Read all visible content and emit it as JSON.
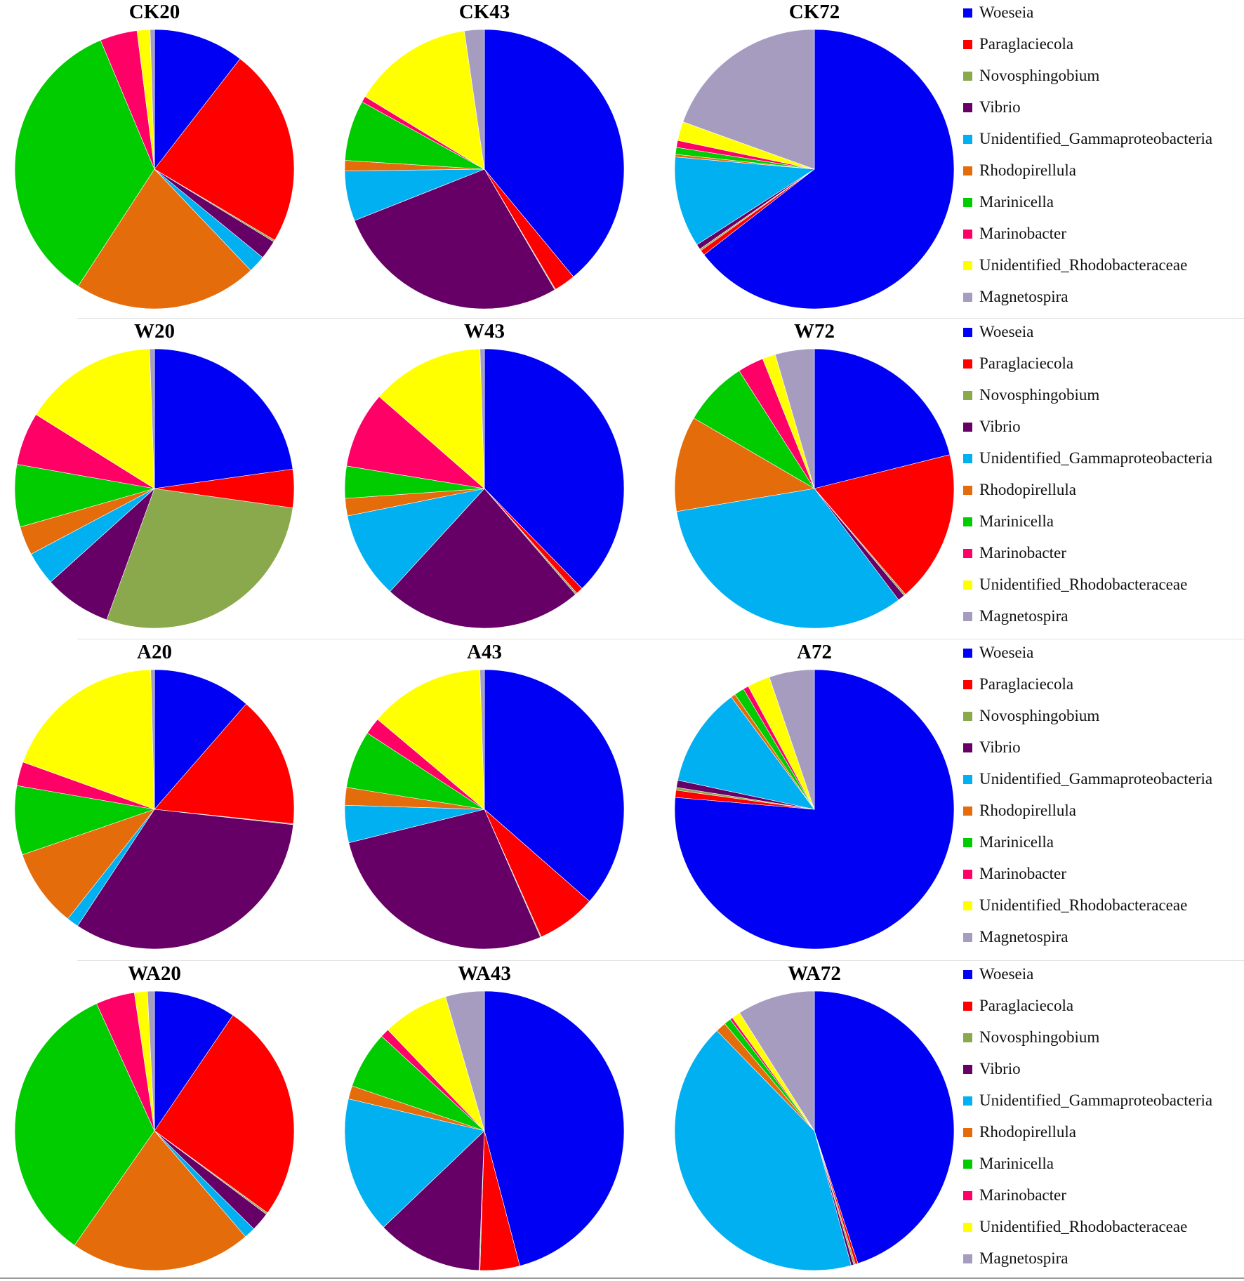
{
  "series_colors": {
    "Woeseia": "#0000f5",
    "Paraglaciecola": "#ff0000",
    "Novosphingobium": "#8aa84c",
    "Vibrio": "#660066",
    "Unidentified_Gammaproteobacteria": "#00b0f0",
    "Rhodopirellula": "#e46c0a",
    "Marinicella": "#00cc00",
    "Marinobacter": "#ff0066",
    "Unidentified_Rhodobacteraceae": "#ffff00",
    "Magnetospira": "#a69cc0"
  },
  "legend_labels": [
    "Woeseia",
    "Paraglaciecola",
    "Novosphingobium",
    "Vibrio",
    "Unidentified_Gammaproteobacteria",
    "Rhodopirellula",
    "Marinicella",
    "Marinobacter",
    "Unidentified_Rhodobacteraceae",
    "Magnetospira"
  ],
  "chart_data": [
    {
      "type": "pie",
      "title": "CK20",
      "categories": [
        "Woeseia",
        "Paraglaciecola",
        "Novosphingobium",
        "Vibrio",
        "Unidentified_Gammaproteobacteria",
        "Rhodopirellula",
        "Marinicella",
        "Marinobacter",
        "Unidentified_Rhodobacteraceae",
        "Magnetospira"
      ],
      "values": [
        10.5,
        23.0,
        0.2,
        2.2,
        2.0,
        21.3,
        34.5,
        4.3,
        1.5,
        0.5
      ]
    },
    {
      "type": "pie",
      "title": "CK43",
      "categories": [
        "Woeseia",
        "Paraglaciecola",
        "Novosphingobium",
        "Vibrio",
        "Unidentified_Gammaproteobacteria",
        "Rhodopirellula",
        "Marinicella",
        "Marinobacter",
        "Unidentified_Rhodobacteraceae",
        "Magnetospira"
      ],
      "values": [
        39.0,
        2.5,
        0.1,
        27.4,
        5.8,
        1.2,
        7.0,
        0.7,
        14.0,
        2.3
      ]
    },
    {
      "type": "pie",
      "title": "CK72",
      "categories": [
        "Woeseia",
        "Paraglaciecola",
        "Novosphingobium",
        "Vibrio",
        "Unidentified_Gammaproteobacteria",
        "Rhodopirellula",
        "Marinicella",
        "Marinobacter",
        "Unidentified_Rhodobacteraceae",
        "Magnetospira"
      ],
      "values": [
        64.5,
        0.6,
        0.2,
        0.6,
        10.5,
        0.3,
        0.8,
        0.8,
        2.2,
        19.5
      ]
    },
    {
      "type": "pie",
      "title": "W20",
      "categories": [
        "Woeseia",
        "Paraglaciecola",
        "Novosphingobium",
        "Vibrio",
        "Unidentified_Gammaproteobacteria",
        "Rhodopirellula",
        "Marinicella",
        "Marinobacter",
        "Unidentified_Rhodobacteraceae",
        "Magnetospira"
      ],
      "values": [
        20.5,
        4.0,
        25.5,
        7.0,
        3.5,
        3.0,
        6.5,
        5.5,
        14.0,
        0.5
      ]
    },
    {
      "type": "pie",
      "title": "W43",
      "categories": [
        "Woeseia",
        "Paraglaciecola",
        "Novosphingobium",
        "Vibrio",
        "Unidentified_Gammaproteobacteria",
        "Rhodopirellula",
        "Marinicella",
        "Marinobacter",
        "Unidentified_Rhodobacteraceae",
        "Magnetospira"
      ],
      "values": [
        37.5,
        0.8,
        0.2,
        23.0,
        10.0,
        2.0,
        3.7,
        8.8,
        13.0,
        0.5
      ]
    },
    {
      "type": "pie",
      "title": "W72",
      "categories": [
        "Woeseia",
        "Paraglaciecola",
        "Novosphingobium",
        "Vibrio",
        "Unidentified_Gammaproteobacteria",
        "Rhodopirellula",
        "Marinicella",
        "Marinobacter",
        "Unidentified_Rhodobacteraceae",
        "Magnetospira"
      ],
      "values": [
        21.0,
        17.5,
        0.2,
        0.8,
        32.5,
        11.0,
        7.5,
        3.0,
        1.5,
        4.5
      ]
    },
    {
      "type": "pie",
      "title": "A20",
      "categories": [
        "Woeseia",
        "Paraglaciecola",
        "Novosphingobium",
        "Vibrio",
        "Unidentified_Gammaproteobacteria",
        "Rhodopirellula",
        "Marinicella",
        "Marinobacter",
        "Unidentified_Rhodobacteraceae",
        "Magnetospira"
      ],
      "values": [
        10.7,
        14.3,
        0.1,
        30.5,
        1.3,
        8.5,
        7.5,
        2.6,
        17.9,
        0.4
      ]
    },
    {
      "type": "pie",
      "title": "A43",
      "categories": [
        "Woeseia",
        "Paraglaciecola",
        "Novosphingobium",
        "Vibrio",
        "Unidentified_Gammaproteobacteria",
        "Rhodopirellula",
        "Marinicella",
        "Marinobacter",
        "Unidentified_Rhodobacteraceae",
        "Magnetospira"
      ],
      "values": [
        35.5,
        6.7,
        0.1,
        27.0,
        4.2,
        2.0,
        6.5,
        1.9,
        13.0,
        0.5
      ]
    },
    {
      "type": "pie",
      "title": "A72",
      "categories": [
        "Woeseia",
        "Paraglaciecola",
        "Novosphingobium",
        "Vibrio",
        "Unidentified_Gammaproteobacteria",
        "Rhodopirellula",
        "Marinicella",
        "Marinobacter",
        "Unidentified_Rhodobacteraceae",
        "Magnetospira"
      ],
      "values": [
        73.0,
        0.8,
        0.3,
        0.8,
        11.0,
        0.5,
        1.1,
        0.6,
        2.5,
        5.0
      ]
    },
    {
      "type": "pie",
      "title": "WA20",
      "categories": [
        "Woeseia",
        "Paraglaciecola",
        "Novosphingobium",
        "Vibrio",
        "Unidentified_Gammaproteobacteria",
        "Rhodopirellula",
        "Marinicella",
        "Marinobacter",
        "Unidentified_Rhodobacteraceae",
        "Magnetospira"
      ],
      "values": [
        9.5,
        25.5,
        0.2,
        2.2,
        1.3,
        21.0,
        33.5,
        4.5,
        1.5,
        0.8
      ]
    },
    {
      "type": "pie",
      "title": "WA43",
      "categories": [
        "Woeseia",
        "Paraglaciecola",
        "Novosphingobium",
        "Vibrio",
        "Unidentified_Gammaproteobacteria",
        "Rhodopirellula",
        "Marinicella",
        "Marinobacter",
        "Unidentified_Rhodobacteraceae",
        "Magnetospira"
      ],
      "values": [
        45.0,
        4.5,
        0.1,
        12.0,
        15.5,
        1.5,
        6.5,
        1.0,
        7.5,
        4.4
      ]
    },
    {
      "type": "pie",
      "title": "WA72",
      "categories": [
        "Woeseia",
        "Paraglaciecola",
        "Novosphingobium",
        "Vibrio",
        "Unidentified_Gammaproteobacteria",
        "Rhodopirellula",
        "Marinicella",
        "Marinobacter",
        "Unidentified_Rhodobacteraceae",
        "Magnetospira"
      ],
      "values": [
        45.0,
        0.3,
        0.2,
        0.3,
        42.0,
        1.2,
        0.8,
        0.3,
        1.0,
        9.0
      ]
    }
  ]
}
